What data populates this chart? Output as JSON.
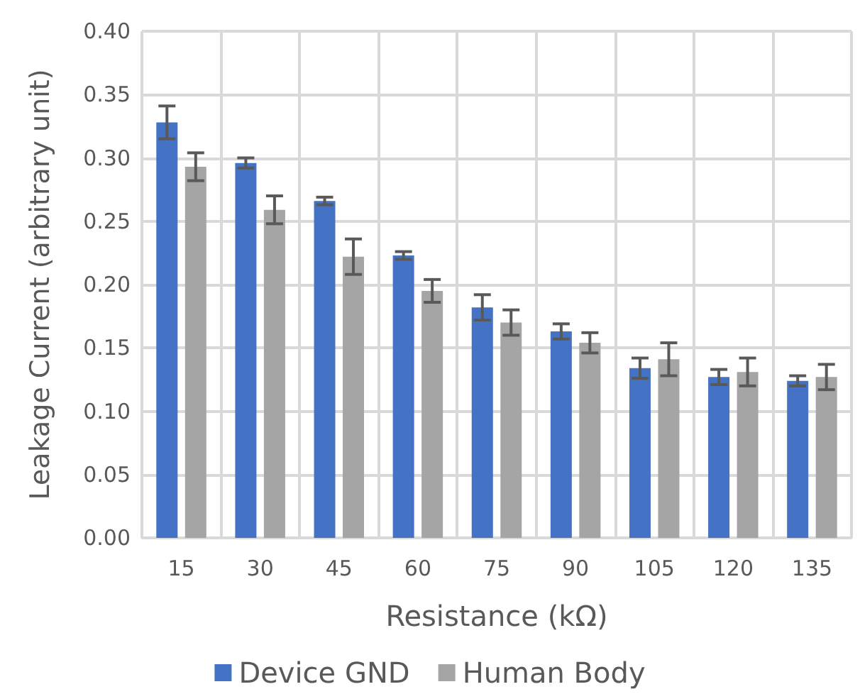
{
  "chart_data": {
    "type": "bar",
    "xlabel": "Resistance (kΩ)",
    "ylabel": "Leakage Current (arbitrary unit)",
    "categories": [
      "15",
      "30",
      "45",
      "60",
      "75",
      "90",
      "105",
      "120",
      "135"
    ],
    "series": [
      {
        "name": "Device GND",
        "color": "#4472c4",
        "values": [
          0.328,
          0.296,
          0.266,
          0.223,
          0.182,
          0.163,
          0.134,
          0.127,
          0.124
        ],
        "errors": [
          0.013,
          0.004,
          0.003,
          0.003,
          0.01,
          0.006,
          0.008,
          0.006,
          0.004
        ]
      },
      {
        "name": "Human Body",
        "color": "#a5a5a5",
        "values": [
          0.293,
          0.259,
          0.222,
          0.195,
          0.17,
          0.154,
          0.141,
          0.131,
          0.127
        ],
        "errors": [
          0.011,
          0.011,
          0.014,
          0.009,
          0.01,
          0.008,
          0.013,
          0.011,
          0.01
        ]
      }
    ],
    "ylim": [
      0,
      0.4
    ],
    "yticks": [
      {
        "value": 0,
        "label": "0.00"
      },
      {
        "value": 0.05,
        "label": "0.05"
      },
      {
        "value": 0.1,
        "label": "0.10"
      },
      {
        "value": 0.15,
        "label": "0.15"
      },
      {
        "value": 0.2,
        "label": "0.20"
      },
      {
        "value": 0.25,
        "label": "0.25"
      },
      {
        "value": 0.3,
        "label": "0.30"
      },
      {
        "value": 0.35,
        "label": "0.35"
      },
      {
        "value": 0.4,
        "label": "0.40"
      }
    ],
    "grid": true,
    "legend": "bottom"
  }
}
